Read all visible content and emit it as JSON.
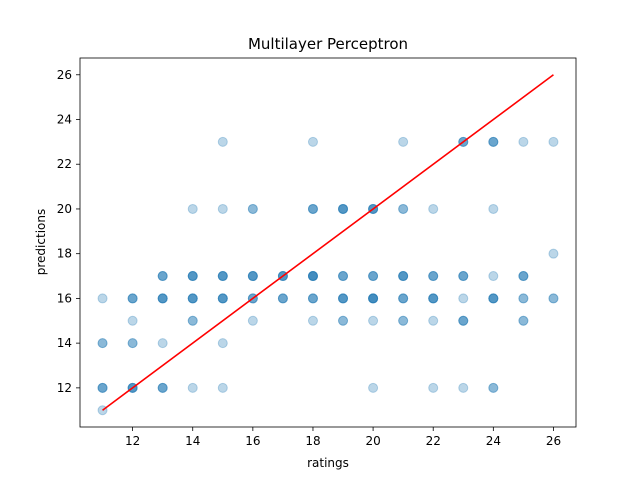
{
  "chart_data": {
    "type": "scatter",
    "title": "Multilayer Perceptron",
    "xlabel": "ratings",
    "ylabel": "predictions",
    "xlim": [
      10.25,
      26.75
    ],
    "ylim": [
      10.25,
      26.75
    ],
    "xticks": [
      12,
      14,
      16,
      18,
      20,
      22,
      24,
      26
    ],
    "yticks": [
      12,
      14,
      16,
      18,
      20,
      22,
      24,
      26
    ],
    "grid": false,
    "point_color": "#1f77b4",
    "point_alpha": 0.3,
    "line_color": "#ff0000",
    "points": [
      [
        11,
        16
      ],
      [
        11,
        14
      ],
      [
        11,
        14
      ],
      [
        11,
        12
      ],
      [
        11,
        12
      ],
      [
        11,
        12
      ],
      [
        11,
        11
      ],
      [
        12,
        16
      ],
      [
        12,
        16
      ],
      [
        12,
        16
      ],
      [
        12,
        15
      ],
      [
        12,
        14
      ],
      [
        12,
        14
      ],
      [
        12,
        12
      ],
      [
        12,
        12
      ],
      [
        12,
        12
      ],
      [
        12,
        12
      ],
      [
        13,
        17
      ],
      [
        13,
        17
      ],
      [
        13,
        17
      ],
      [
        13,
        16
      ],
      [
        13,
        16
      ],
      [
        13,
        16
      ],
      [
        13,
        16
      ],
      [
        13,
        14
      ],
      [
        13,
        12
      ],
      [
        13,
        12
      ],
      [
        13,
        12
      ],
      [
        14,
        20
      ],
      [
        14,
        17
      ],
      [
        14,
        17
      ],
      [
        14,
        17
      ],
      [
        14,
        17
      ],
      [
        14,
        16
      ],
      [
        14,
        16
      ],
      [
        14,
        16
      ],
      [
        14,
        16
      ],
      [
        14,
        15
      ],
      [
        14,
        15
      ],
      [
        14,
        12
      ],
      [
        15,
        23
      ],
      [
        15,
        20
      ],
      [
        15,
        17
      ],
      [
        15,
        17
      ],
      [
        15,
        17
      ],
      [
        15,
        17
      ],
      [
        15,
        16
      ],
      [
        15,
        16
      ],
      [
        15,
        16
      ],
      [
        15,
        16
      ],
      [
        15,
        14
      ],
      [
        15,
        12
      ],
      [
        16,
        20
      ],
      [
        16,
        20
      ],
      [
        16,
        17
      ],
      [
        16,
        17
      ],
      [
        16,
        17
      ],
      [
        16,
        17
      ],
      [
        16,
        16
      ],
      [
        16,
        16
      ],
      [
        16,
        16
      ],
      [
        16,
        15
      ],
      [
        17,
        17
      ],
      [
        17,
        17
      ],
      [
        17,
        17
      ],
      [
        17,
        17
      ],
      [
        17,
        16
      ],
      [
        17,
        16
      ],
      [
        17,
        16
      ],
      [
        18,
        23
      ],
      [
        18,
        20
      ],
      [
        18,
        20
      ],
      [
        18,
        20
      ],
      [
        18,
        17
      ],
      [
        18,
        17
      ],
      [
        18,
        17
      ],
      [
        18,
        17
      ],
      [
        18,
        17
      ],
      [
        18,
        16
      ],
      [
        18,
        16
      ],
      [
        18,
        16
      ],
      [
        18,
        15
      ],
      [
        19,
        20
      ],
      [
        19,
        20
      ],
      [
        19,
        20
      ],
      [
        19,
        20
      ],
      [
        19,
        17
      ],
      [
        19,
        17
      ],
      [
        19,
        17
      ],
      [
        19,
        16
      ],
      [
        19,
        16
      ],
      [
        19,
        16
      ],
      [
        19,
        16
      ],
      [
        19,
        15
      ],
      [
        19,
        15
      ],
      [
        20,
        20
      ],
      [
        20,
        20
      ],
      [
        20,
        20
      ],
      [
        20,
        20
      ],
      [
        20,
        17
      ],
      [
        20,
        17
      ],
      [
        20,
        17
      ],
      [
        20,
        16
      ],
      [
        20,
        16
      ],
      [
        20,
        16
      ],
      [
        20,
        16
      ],
      [
        20,
        16
      ],
      [
        20,
        15
      ],
      [
        20,
        12
      ],
      [
        21,
        23
      ],
      [
        21,
        20
      ],
      [
        21,
        20
      ],
      [
        21,
        17
      ],
      [
        21,
        17
      ],
      [
        21,
        17
      ],
      [
        21,
        17
      ],
      [
        21,
        16
      ],
      [
        21,
        16
      ],
      [
        21,
        16
      ],
      [
        21,
        15
      ],
      [
        21,
        15
      ],
      [
        22,
        20
      ],
      [
        22,
        17
      ],
      [
        22,
        17
      ],
      [
        22,
        17
      ],
      [
        22,
        16
      ],
      [
        22,
        16
      ],
      [
        22,
        16
      ],
      [
        22,
        16
      ],
      [
        22,
        15
      ],
      [
        22,
        12
      ],
      [
        23,
        23
      ],
      [
        23,
        23
      ],
      [
        23,
        23
      ],
      [
        23,
        17
      ],
      [
        23,
        17
      ],
      [
        23,
        17
      ],
      [
        23,
        16
      ],
      [
        23,
        15
      ],
      [
        23,
        15
      ],
      [
        23,
        15
      ],
      [
        23,
        12
      ],
      [
        24,
        23
      ],
      [
        24,
        23
      ],
      [
        24,
        23
      ],
      [
        24,
        20
      ],
      [
        24,
        17
      ],
      [
        24,
        16
      ],
      [
        24,
        16
      ],
      [
        24,
        16
      ],
      [
        24,
        16
      ],
      [
        24,
        12
      ],
      [
        24,
        12
      ],
      [
        25,
        23
      ],
      [
        25,
        17
      ],
      [
        25,
        17
      ],
      [
        25,
        17
      ],
      [
        25,
        16
      ],
      [
        25,
        16
      ],
      [
        25,
        15
      ],
      [
        25,
        15
      ],
      [
        26,
        23
      ],
      [
        26,
        18
      ],
      [
        26,
        16
      ],
      [
        26,
        16
      ]
    ],
    "fit_line": {
      "x": [
        11,
        26
      ],
      "y": [
        11,
        26
      ]
    }
  }
}
